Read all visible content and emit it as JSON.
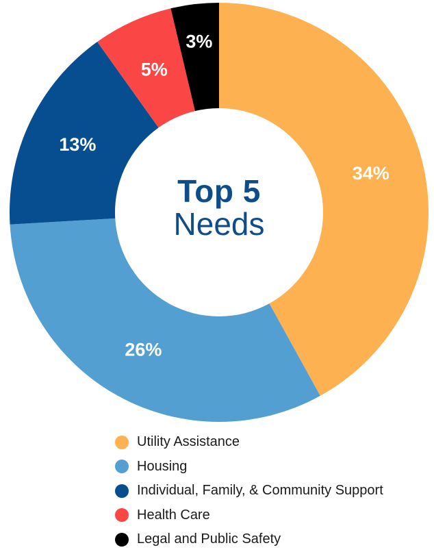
{
  "chart_data": {
    "type": "pie",
    "donut": true,
    "title_line1": "Top 5",
    "title_line2": "Needs",
    "categories": [
      "Utility Assistance",
      "Housing",
      "Individual, Family, & Community Support",
      "Health Care",
      "Legal and Public Safety"
    ],
    "values": [
      34,
      26,
      13,
      5,
      3
    ],
    "value_labels": [
      "34%",
      "26%",
      "13%",
      "5%",
      "3%"
    ],
    "colors": [
      "#fdb150",
      "#549fd2",
      "#064e8f",
      "#fb4646",
      "#000000"
    ],
    "legend_position": "bottom"
  }
}
